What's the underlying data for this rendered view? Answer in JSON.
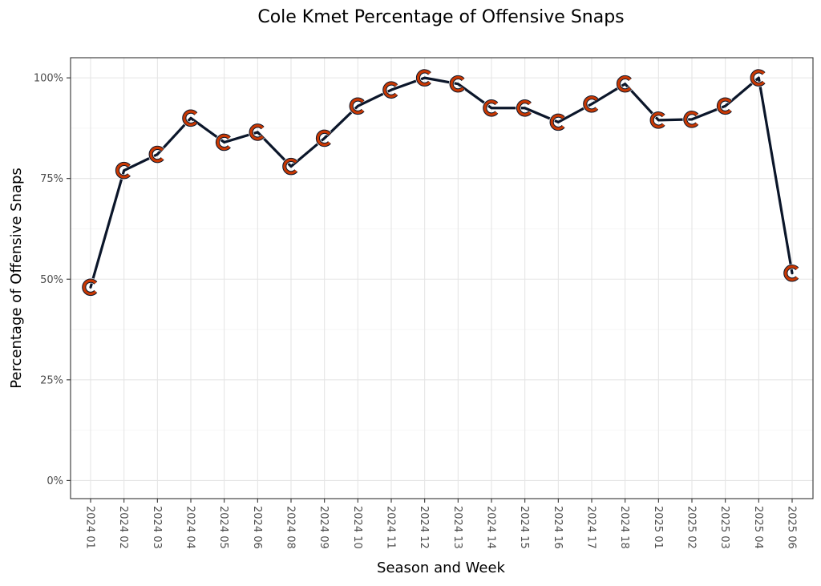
{
  "colors": {
    "line": "#0b162a",
    "logo_orange": "#c83803",
    "logo_navy": "#0b162a",
    "logo_white": "#ffffff"
  },
  "icons": {
    "point_marker": "bears-c-logo-icon"
  },
  "chart_data": {
    "type": "line",
    "title": "Cole Kmet Percentage of Offensive Snaps",
    "xlabel": "Season and Week",
    "ylabel": "Percentage of Offensive Snaps",
    "ylim": [
      -0.045,
      1.05
    ],
    "yticks": [
      0,
      0.25,
      0.5,
      0.75,
      1.0
    ],
    "ytick_labels": [
      "0%",
      "25%",
      "50%",
      "75%",
      "100%"
    ],
    "grid": true,
    "legend": "none",
    "categories": [
      "2024 01",
      "2024 02",
      "2024 03",
      "2024 04",
      "2024 05",
      "2024 06",
      "2024 08",
      "2024 09",
      "2024 10",
      "2024 11",
      "2024 12",
      "2024 13",
      "2024 14",
      "2024 15",
      "2024 16",
      "2024 17",
      "2024 18",
      "2025 01",
      "2025 02",
      "2025 03",
      "2025 04",
      "2025 06"
    ],
    "series": [
      {
        "name": "Cole Kmet",
        "values": [
          0.48,
          0.77,
          0.81,
          0.9,
          0.84,
          0.865,
          0.78,
          0.85,
          0.93,
          0.97,
          1.0,
          0.985,
          0.925,
          0.925,
          0.89,
          0.935,
          0.985,
          0.895,
          0.897,
          0.93,
          1.0,
          0.515
        ]
      }
    ]
  }
}
